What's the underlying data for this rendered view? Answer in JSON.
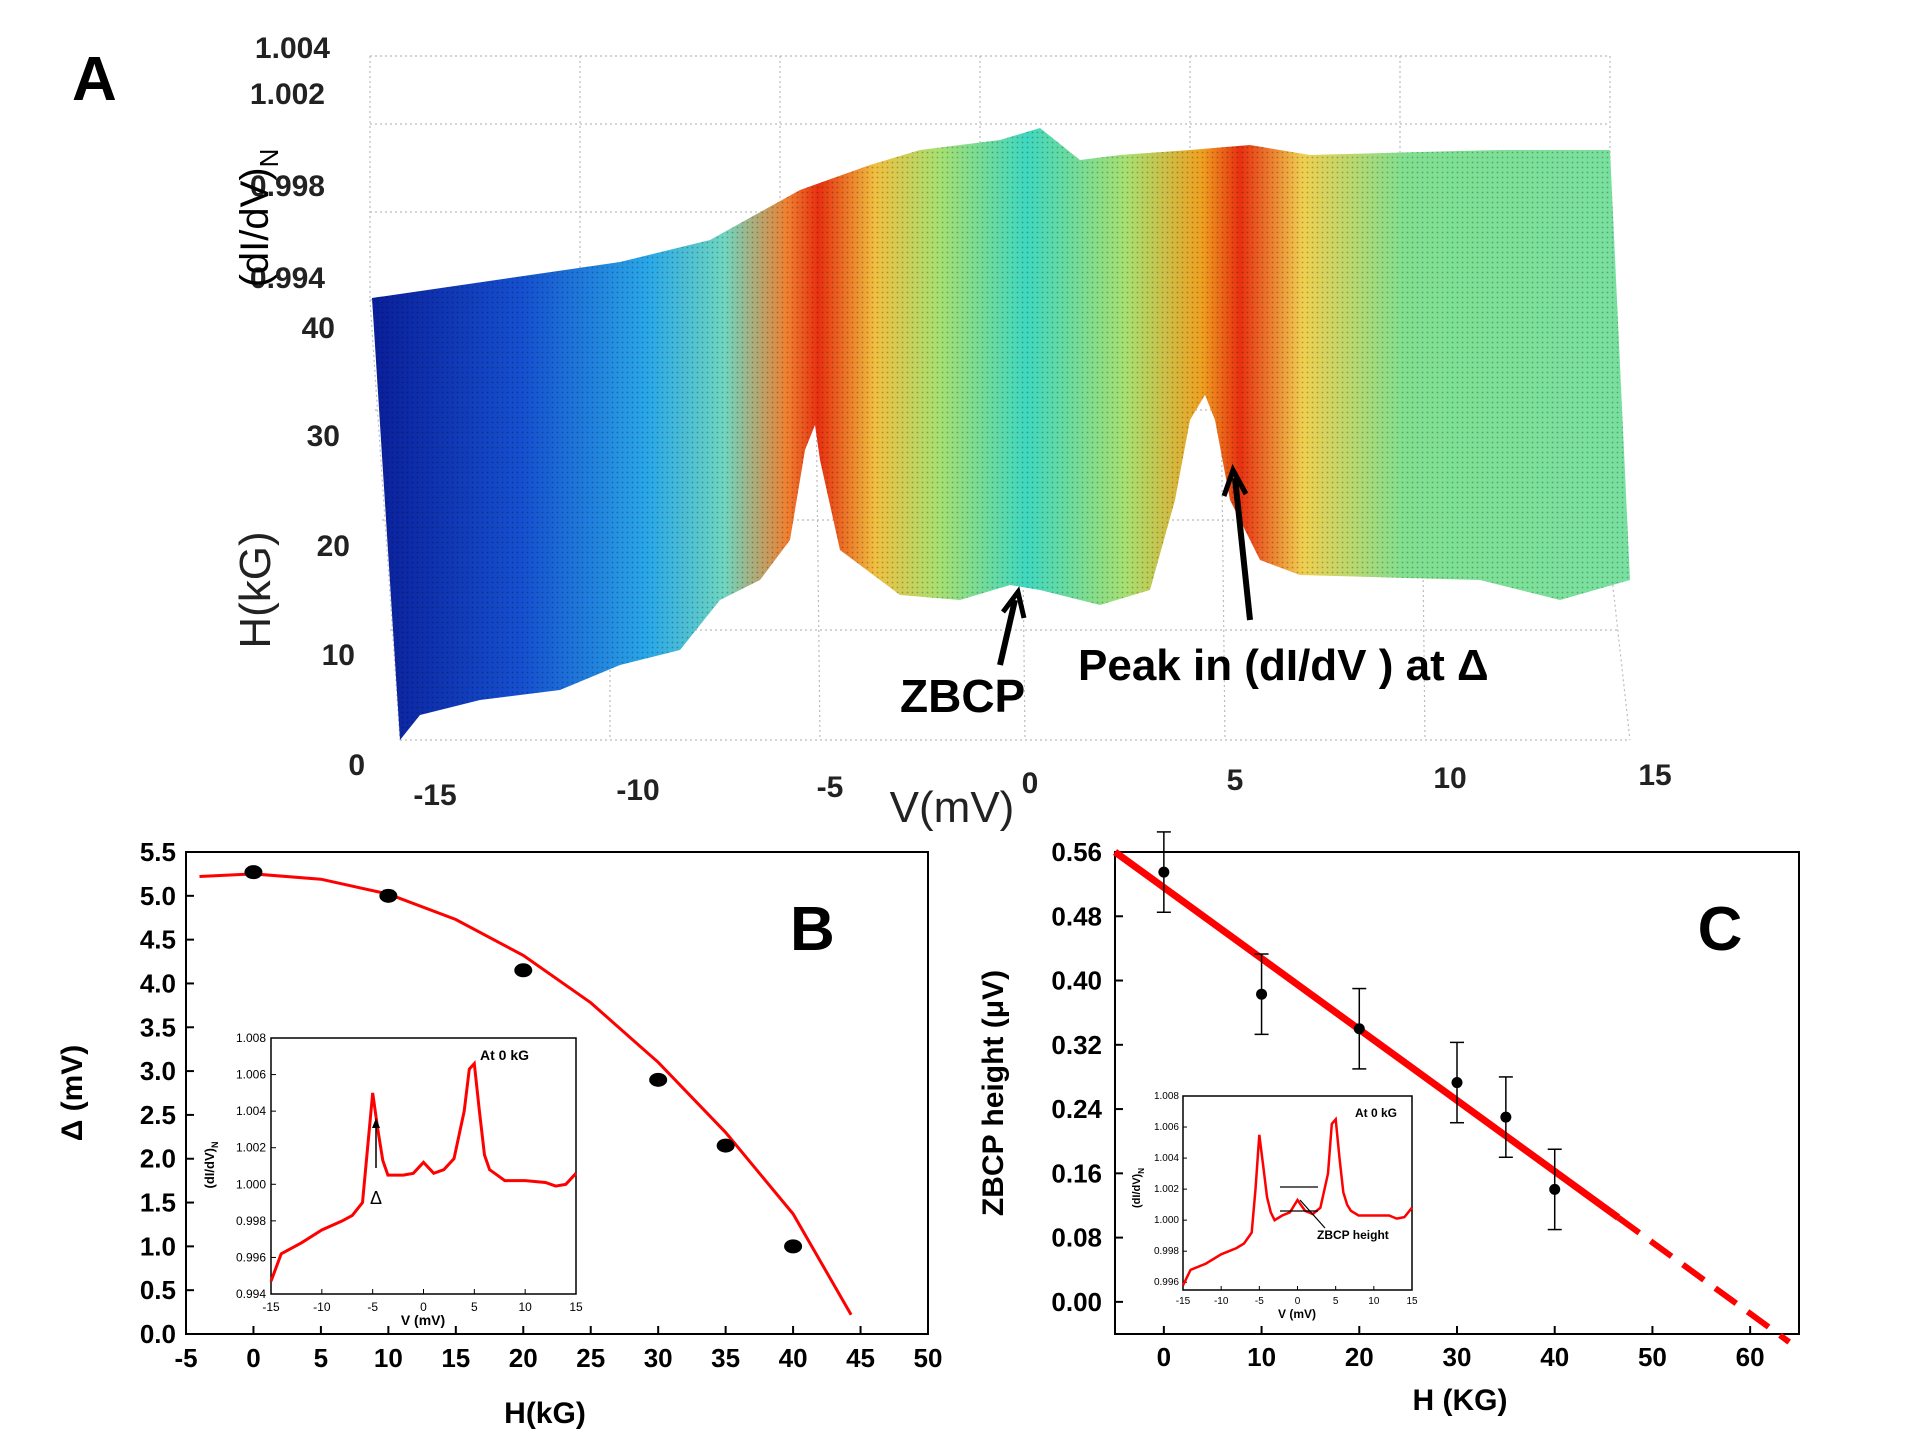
{
  "panel_a": {
    "label": "A",
    "zlabel": "(dI/dV)",
    "zlabel_sub": "N",
    "ylabel": "H(kG)",
    "xlabel": "V(mV)",
    "z_ticks": [
      "1.004",
      "1.002",
      "0.998",
      "0.994"
    ],
    "h_ticks": [
      "40",
      "30",
      "20",
      "10",
      "0"
    ],
    "v_ticks": [
      "-15",
      "-10",
      "-5",
      "0",
      "5",
      "10",
      "15"
    ],
    "ann_zbcp": "ZBCP",
    "ann_peak": "Peak in (dI/dV ) at Δ"
  },
  "panel_b": {
    "label": "B",
    "inset": {
      "title": "At 0 kG",
      "ylabel": "(dI/dV)",
      "ylabel_sub": "N",
      "xlabel": "V (mV)",
      "delta_label": "Δ",
      "x_ticks": [
        "-15",
        "-10",
        "-5",
        "0",
        "5",
        "10",
        "15"
      ],
      "y_ticks": [
        "0.994",
        "0.996",
        "0.998",
        "1.000",
        "1.002",
        "1.004",
        "1.006",
        "1.008"
      ]
    }
  },
  "panel_c": {
    "label": "C",
    "inset": {
      "title": "At 0 kG",
      "ylabel": "(dI/dV)",
      "ylabel_sub": "N",
      "xlabel": "V (mV)",
      "zbcp_label": "ZBCP height",
      "x_ticks": [
        "-15",
        "-10",
        "-5",
        "0",
        "5",
        "10",
        "15"
      ],
      "y_ticks": [
        "0.996",
        "0.998",
        "1.000",
        "1.002",
        "1.004",
        "1.006",
        "1.008"
      ]
    }
  },
  "chart_data": [
    {
      "type": "area",
      "panel": "A",
      "xlabel": "V(mV)",
      "ylabel": "H(kG)",
      "zlabel": "(dI/dV)N",
      "xlim": [
        -15,
        15
      ],
      "ylim": [
        0,
        40
      ],
      "zlim": [
        0.994,
        1.004
      ],
      "features": [
        "ZBCP at 0 mV",
        "Peak in (dI/dV) at Δ near ±5 mV"
      ]
    },
    {
      "type": "scatter",
      "panel": "B",
      "xlabel": "H(kG)",
      "ylabel": "Δ (mV)",
      "xlim": [
        -5,
        50
      ],
      "ylim": [
        0.0,
        5.5
      ],
      "x_ticks": [
        "-5",
        "0",
        "5",
        "10",
        "15",
        "20",
        "25",
        "30",
        "35",
        "40",
        "45",
        "50"
      ],
      "y_ticks": [
        "0.0",
        "0.5",
        "1.0",
        "1.5",
        "2.0",
        "2.5",
        "3.0",
        "3.5",
        "4.0",
        "4.5",
        "5.0",
        "5.5"
      ],
      "x": [
        0,
        10,
        20,
        30,
        35,
        40
      ],
      "y": [
        5.27,
        5.0,
        4.15,
        2.9,
        2.15,
        1.0
      ],
      "fit": {
        "type": "line",
        "x": [
          -4,
          0,
          5,
          10,
          15,
          20,
          25,
          30,
          35,
          40,
          44.3
        ],
        "y": [
          5.22,
          5.25,
          5.19,
          5.02,
          4.73,
          4.32,
          3.78,
          3.1,
          2.3,
          1.37,
          0.22
        ]
      },
      "color": "#ff0000"
    },
    {
      "type": "line",
      "panel": "B-inset",
      "title": "At 0 kG",
      "xlabel": "V (mV)",
      "ylabel": "(dI/dV)N",
      "xlim": [
        -15,
        15
      ],
      "ylim": [
        0.994,
        1.008
      ],
      "x": [
        -15,
        -14,
        -12,
        -10,
        -8,
        -7,
        -6,
        -5.5,
        -5,
        -4.5,
        -4,
        -3.5,
        -3,
        -2,
        -1,
        0,
        1,
        2,
        3,
        4,
        4.5,
        5,
        5.5,
        6,
        6.5,
        7,
        8,
        10,
        12,
        13,
        14,
        15
      ],
      "y": [
        0.9947,
        0.9962,
        0.9968,
        0.9975,
        0.998,
        0.9983,
        0.999,
        1.002,
        1.005,
        1.003,
        1.0013,
        1.0005,
        1.0005,
        1.0005,
        1.0006,
        1.0012,
        1.0006,
        1.0008,
        1.0014,
        1.004,
        1.0063,
        1.0066,
        1.004,
        1.0016,
        1.0008,
        1.0006,
        1.0002,
        1.0002,
        1.0001,
        0.9999,
        1.0,
        1.0006
      ],
      "color": "#ff0000"
    },
    {
      "type": "scatter",
      "panel": "C",
      "xlabel": "H (KG)",
      "ylabel": "ZBCP height (μV)",
      "xlim": [
        -5,
        65
      ],
      "ylim": [
        -0.04,
        0.56
      ],
      "x_ticks": [
        "0",
        "10",
        "20",
        "30",
        "40",
        "50",
        "60"
      ],
      "y_ticks": [
        "0.00",
        "0.08",
        "0.16",
        "0.24",
        "0.32",
        "0.40",
        "0.48",
        "0.56"
      ],
      "x": [
        0,
        10,
        20,
        30,
        35,
        40
      ],
      "y": [
        0.535,
        0.383,
        0.34,
        0.273,
        0.23,
        0.14
      ],
      "err": [
        0.05,
        0.05,
        0.05,
        0.05,
        0.05,
        0.05
      ],
      "fit": {
        "type": "line",
        "x": [
          -5,
          46.5
        ],
        "y": [
          0.56,
          0.105
        ]
      },
      "extrapolation": {
        "type": "line",
        "x": [
          46.5,
          64
        ],
        "y": [
          0.105,
          -0.05
        ],
        "style": "dashed"
      },
      "color": "#ff0000"
    },
    {
      "type": "line",
      "panel": "C-inset",
      "title": "At 0 kG",
      "xlabel": "V (mV)",
      "ylabel": "(dI/dV)N",
      "xlim": [
        -15,
        15
      ],
      "ylim": [
        0.9955,
        1.008
      ],
      "x": [
        -15,
        -14,
        -12,
        -10,
        -8,
        -7,
        -6,
        -5.5,
        -5,
        -4.5,
        -4,
        -3.5,
        -3,
        -2,
        -1,
        0,
        1,
        2,
        3,
        4,
        4.5,
        5,
        5.5,
        6,
        6.5,
        7,
        8,
        10,
        12,
        13,
        14,
        15
      ],
      "y": [
        0.9958,
        0.9968,
        0.9972,
        0.9978,
        0.9982,
        0.9985,
        0.9992,
        1.002,
        1.0055,
        1.0035,
        1.0015,
        1.0005,
        1.0,
        1.0003,
        1.0005,
        1.0013,
        1.0006,
        1.0004,
        1.0008,
        1.003,
        1.0062,
        1.0065,
        1.004,
        1.0018,
        1.001,
        1.0006,
        1.0003,
        1.0003,
        1.0003,
        1.0001,
        1.0002,
        1.0008
      ],
      "color": "#ff0000"
    }
  ]
}
